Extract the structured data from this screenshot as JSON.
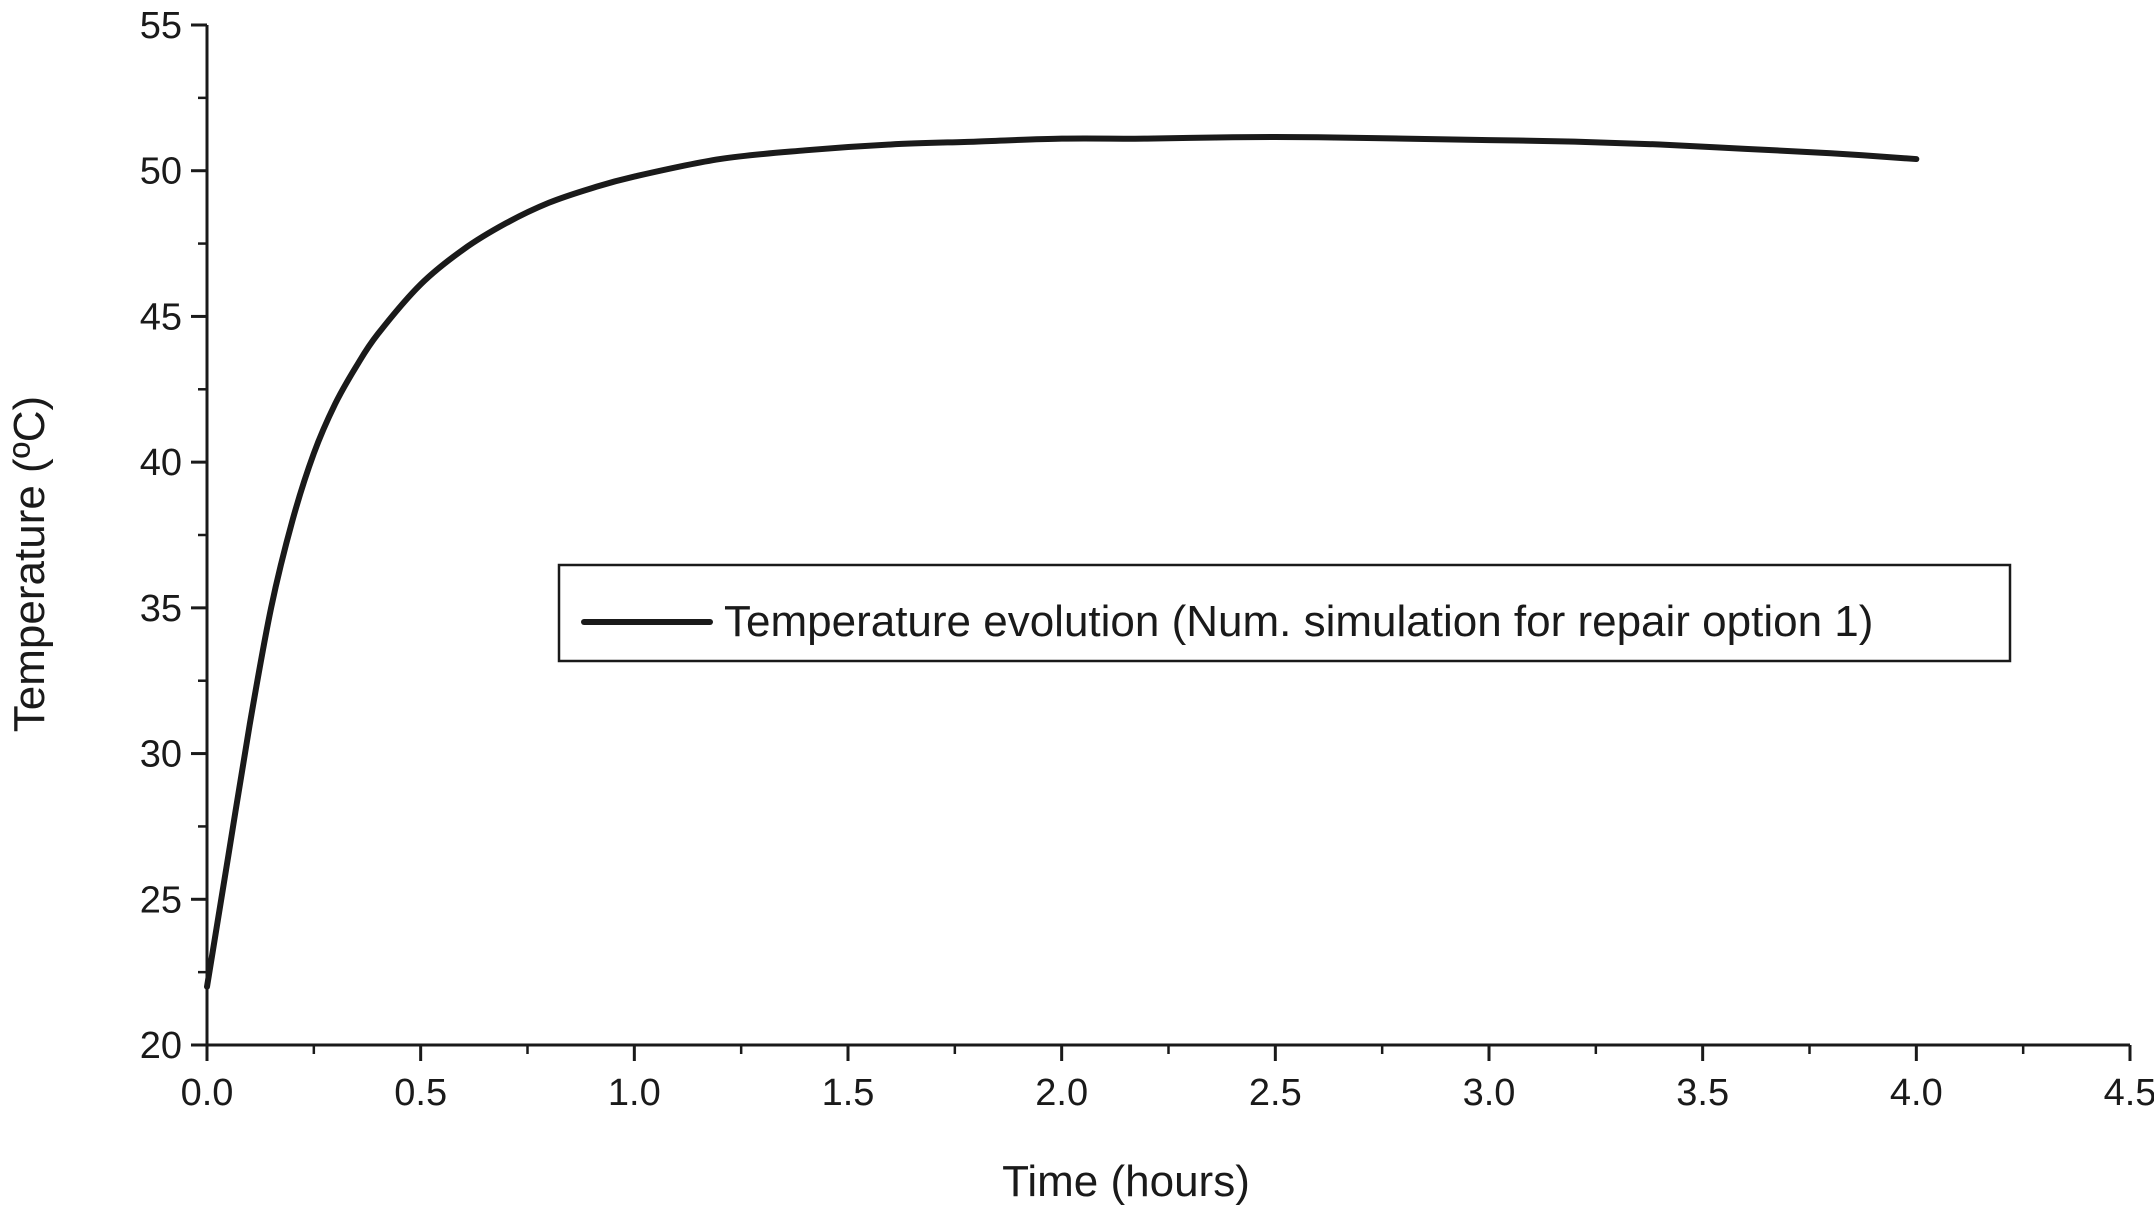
{
  "chart_data": {
    "type": "line",
    "title": "",
    "xlabel": "Time (hours)",
    "ylabel": "Temperature (ºC)",
    "xlim": [
      0,
      4.5
    ],
    "ylim": [
      20,
      55
    ],
    "x_ticks": [
      "0.0",
      "0.5",
      "1.0",
      "1.5",
      "2.0",
      "2.5",
      "3.0",
      "3.5",
      "4.0",
      "4.5"
    ],
    "y_ticks": [
      "20",
      "25",
      "30",
      "35",
      "40",
      "45",
      "50",
      "55"
    ],
    "grid": false,
    "legend_position": "center-right",
    "series": [
      {
        "name": "Temperature evolution (Num. simulation for repair option 1)",
        "color": "#1a1a1a",
        "x": [
          0.0,
          0.05,
          0.1,
          0.15,
          0.2,
          0.25,
          0.3,
          0.35,
          0.4,
          0.5,
          0.6,
          0.7,
          0.8,
          0.9,
          1.0,
          1.2,
          1.4,
          1.6,
          1.8,
          2.0,
          2.2,
          2.4,
          2.6,
          2.8,
          3.0,
          3.2,
          3.4,
          3.6,
          3.8,
          4.0
        ],
        "y": [
          22.0,
          26.5,
          31.0,
          35.0,
          38.0,
          40.3,
          42.0,
          43.3,
          44.4,
          46.1,
          47.3,
          48.2,
          48.9,
          49.4,
          49.8,
          50.4,
          50.7,
          50.9,
          51.0,
          51.1,
          51.1,
          51.15,
          51.15,
          51.1,
          51.05,
          51.0,
          50.9,
          50.75,
          50.6,
          50.4
        ]
      }
    ]
  }
}
